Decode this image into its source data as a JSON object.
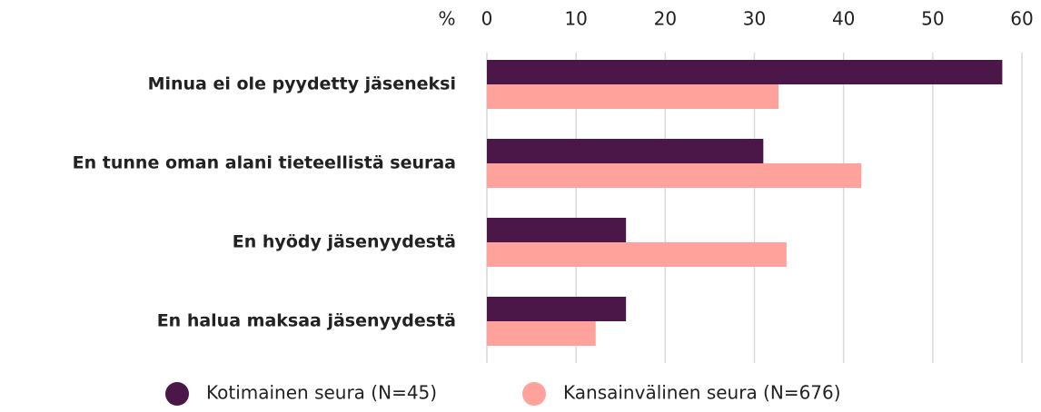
{
  "chart_data": {
    "type": "hbar",
    "xlabel": "%",
    "categories": [
      "Minua ei ole pyydetty jäseneksi",
      "En tunne oman alani tieteellistä seuraa",
      "En hyödy jäsenyydestä",
      "En halua maksaa jäsenyydestä"
    ],
    "series": [
      {
        "name": "Kotimainen seura (N=45)",
        "color": "#4a1748",
        "values": [
          57.8,
          31,
          15.6,
          15.6
        ]
      },
      {
        "name": "Kansainvälinen seura (N=676)",
        "color": "#ffa29c",
        "values": [
          32.7,
          42,
          33.6,
          12.2
        ]
      }
    ],
    "xlim": [
      0,
      60
    ],
    "xticks": [
      0,
      10,
      20,
      30,
      40,
      50,
      60
    ],
    "grid": true,
    "legend": "bottom"
  }
}
